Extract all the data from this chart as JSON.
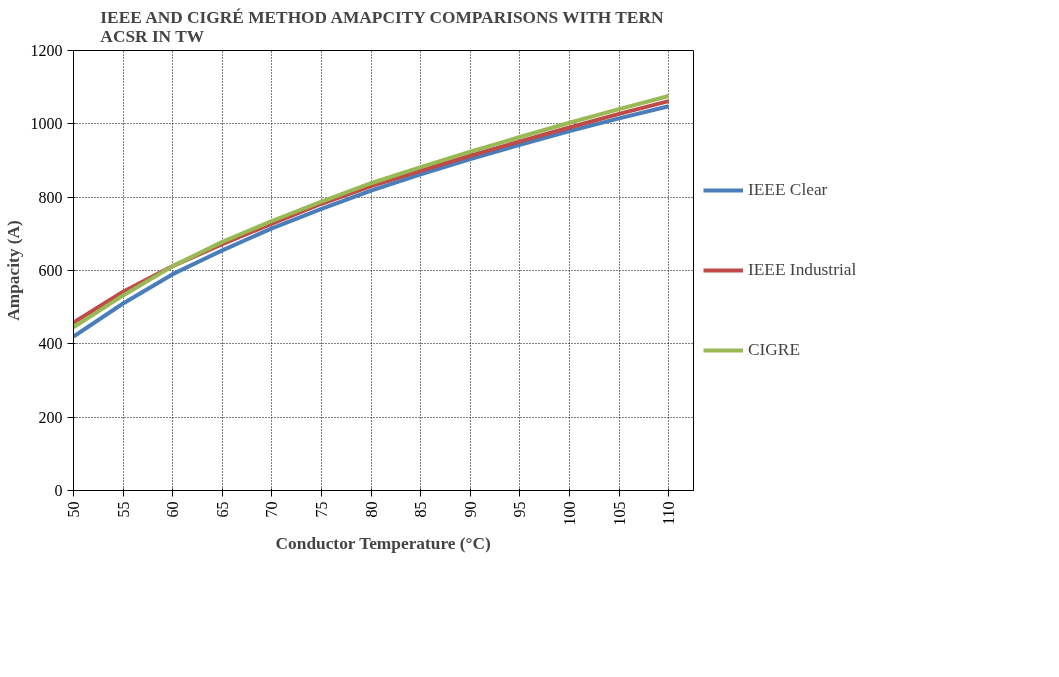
{
  "chart_data": {
    "type": "line",
    "title": "IEEE AND CIGRÉ METHOD AMAPCITY COMPARISONS WITH TERN\nACSR IN TW",
    "xlabel": "Conductor Temperature (°C)",
    "ylabel": "Ampacity (A)",
    "x": [
      50,
      55,
      60,
      65,
      70,
      75,
      80,
      85,
      90,
      95,
      100,
      105,
      110
    ],
    "series": [
      {
        "name": "IEEE Clear",
        "color": "#4a7ebb",
        "values": [
          420,
          510,
          590,
          655,
          715,
          768,
          818,
          862,
          904,
          943,
          980,
          1015,
          1048
        ]
      },
      {
        "name": "IEEE Industrial",
        "color": "#be4b48",
        "values": [
          458,
          542,
          612,
          672,
          728,
          782,
          830,
          872,
          913,
          952,
          990,
          1027,
          1062
        ]
      },
      {
        "name": "CIGRE",
        "color": "#98b954",
        "values": [
          445,
          532,
          612,
          678,
          735,
          788,
          838,
          882,
          924,
          964,
          1003,
          1040,
          1076
        ]
      }
    ],
    "xlim": [
      50,
      112.5
    ],
    "xticks": [
      50,
      55,
      60,
      65,
      70,
      75,
      80,
      85,
      90,
      95,
      100,
      105,
      110
    ],
    "ylim": [
      0,
      1200
    ],
    "yticks": [
      0,
      200,
      400,
      600,
      800,
      1000,
      1200
    ],
    "grid": true,
    "legend": "right",
    "marker": "none",
    "line_style": "solid"
  }
}
